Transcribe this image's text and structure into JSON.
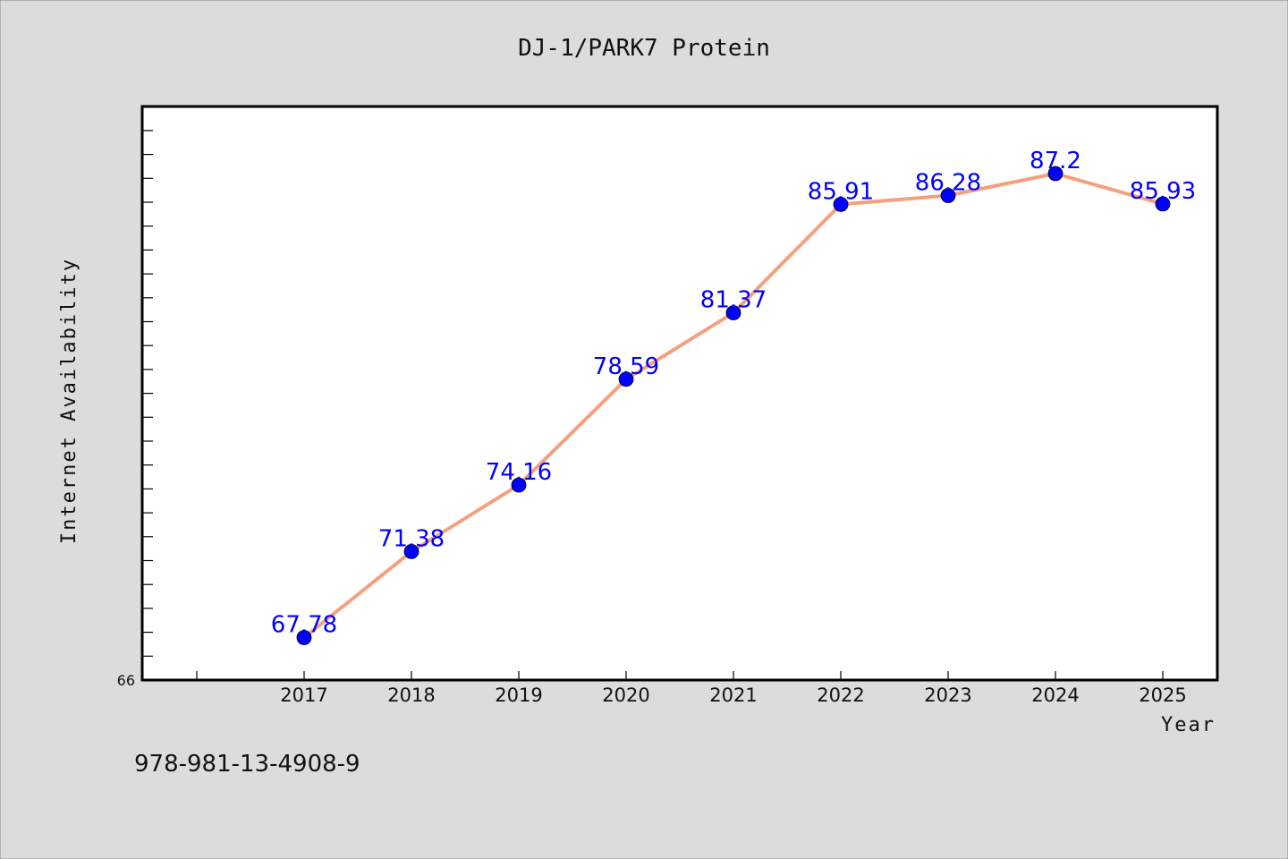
{
  "chart_data": {
    "type": "line",
    "title": "DJ-1/PARK7 Protein",
    "xlabel": "Year",
    "ylabel": "Internet Availability",
    "categories": [
      "2017",
      "2018",
      "2019",
      "2020",
      "2021",
      "2022",
      "2023",
      "2024",
      "2025"
    ],
    "series": [
      {
        "values": [
          67.78,
          71.38,
          74.16,
          78.59,
          81.37,
          85.91,
          86.28,
          87.2,
          85.93
        ],
        "data_labels": [
          "67.78",
          "71.38",
          "74.16",
          "78.59",
          "81.37",
          "85.91",
          "86.28",
          "87.2",
          "85.93"
        ],
        "line_color": "#f4a07e",
        "marker_color": "#0000ff"
      }
    ],
    "y_tick_labels": [
      "66"
    ],
    "ylim": [
      66,
      90
    ],
    "grid": false,
    "legend": "none"
  },
  "footer": {
    "isbn": "978-981-13-4908-9"
  }
}
